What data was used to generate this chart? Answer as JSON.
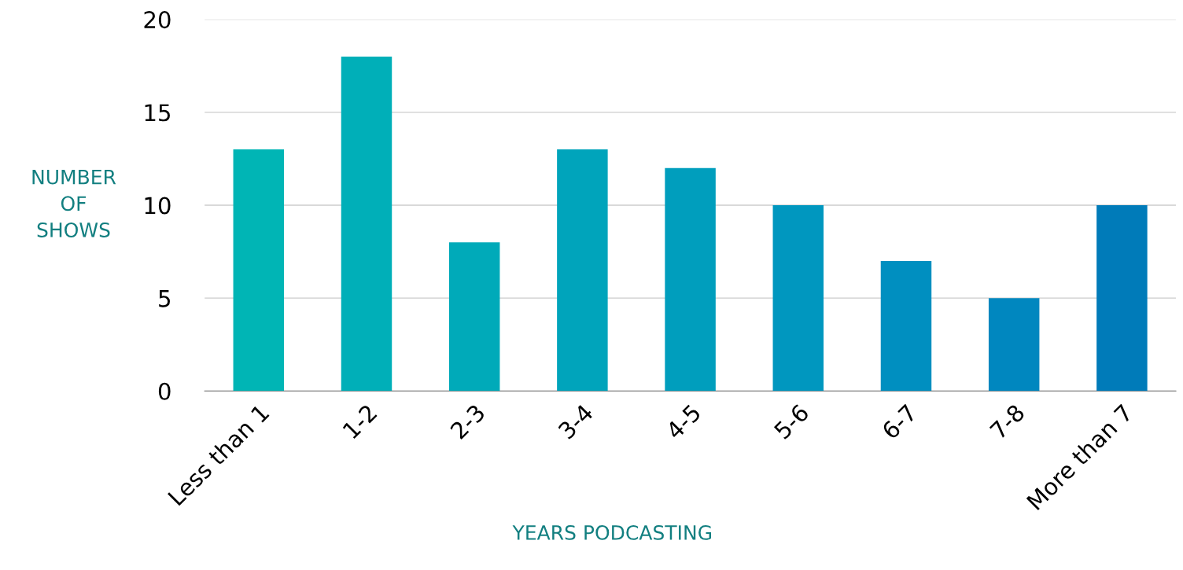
{
  "chart_data": {
    "type": "bar",
    "xlabel": "YEARS PODCASTING",
    "ylabel": "NUMBER OF SHOWS",
    "categories": [
      "Less than 1",
      "1-2",
      "2-3",
      "3-4",
      "4-5",
      "5-6",
      "6-7",
      "7-8",
      "More than 7"
    ],
    "values": [
      13,
      18,
      8,
      13,
      12,
      10,
      7,
      5,
      10
    ],
    "colors": [
      "#00b5b5",
      "#00afb8",
      "#00aab9",
      "#00a4bb",
      "#009ebd",
      "#0097bf",
      "#008fc0",
      "#0087bf",
      "#007bb9"
    ],
    "ylim": [
      0,
      20
    ],
    "yticks": [
      0,
      5,
      10,
      15,
      20
    ],
    "grid": "y",
    "legend": false
  }
}
